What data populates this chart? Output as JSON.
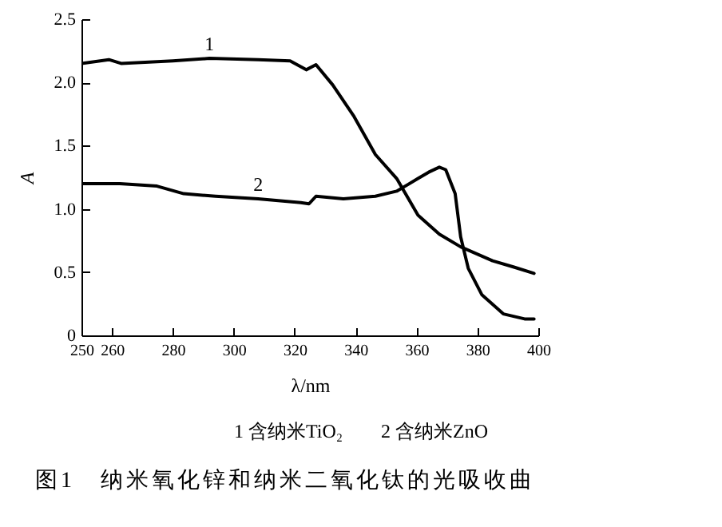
{
  "chart_data": {
    "type": "line",
    "title": "图1　纳米氧化锌和纳米二氧化钛的光吸收曲",
    "xlabel": "λ/nm",
    "ylabel": "A",
    "annotations": [
      "1 含纳米TiO₂　　2 含纳米ZnO"
    ],
    "xlim": [
      250,
      400
    ],
    "xticks": [
      250,
      260,
      280,
      300,
      320,
      340,
      360,
      380,
      400
    ],
    "ylim": [
      0,
      2.5
    ],
    "yticks": [
      0,
      0.5,
      {
        "value": 1,
        "label": "1.0"
      },
      1.5,
      {
        "value": 2,
        "label": "2.0"
      },
      2.5
    ],
    "grid": false,
    "marker": "none",
    "line_style": "solid",
    "series": [
      {
        "name": "1",
        "color": "#000000",
        "x": [
          250,
          259,
          263,
          280,
          292,
          308,
          318.5,
          323.8,
          327,
          332.5,
          339.5,
          346.5,
          353.5,
          360.5,
          367.5,
          374.5,
          385,
          392,
          398.6
        ],
        "values": [
          2.15,
          2.18,
          2.15,
          2.17,
          2.19,
          2.18,
          2.17,
          2.1,
          2.14,
          1.98,
          1.73,
          1.43,
          1.24,
          0.95,
          0.8,
          0.7,
          0.59,
          0.54,
          0.49
        ]
      },
      {
        "name": "2",
        "color": "#000000",
        "x": [
          250,
          262.6,
          274.8,
          283.6,
          294,
          308,
          322,
          324.7,
          327,
          336,
          346.5,
          353.5,
          360.5,
          364,
          367.5,
          369.6,
          372.7,
          374.5,
          377,
          381.5,
          388.5,
          395.5,
          398.6
        ],
        "values": [
          1.2,
          1.2,
          1.18,
          1.12,
          1.1,
          1.08,
          1.05,
          1.04,
          1.1,
          1.08,
          1.1,
          1.14,
          1.24,
          1.29,
          1.33,
          1.31,
          1.12,
          0.78,
          0.53,
          0.32,
          0.17,
          0.13,
          0.13
        ]
      }
    ]
  }
}
